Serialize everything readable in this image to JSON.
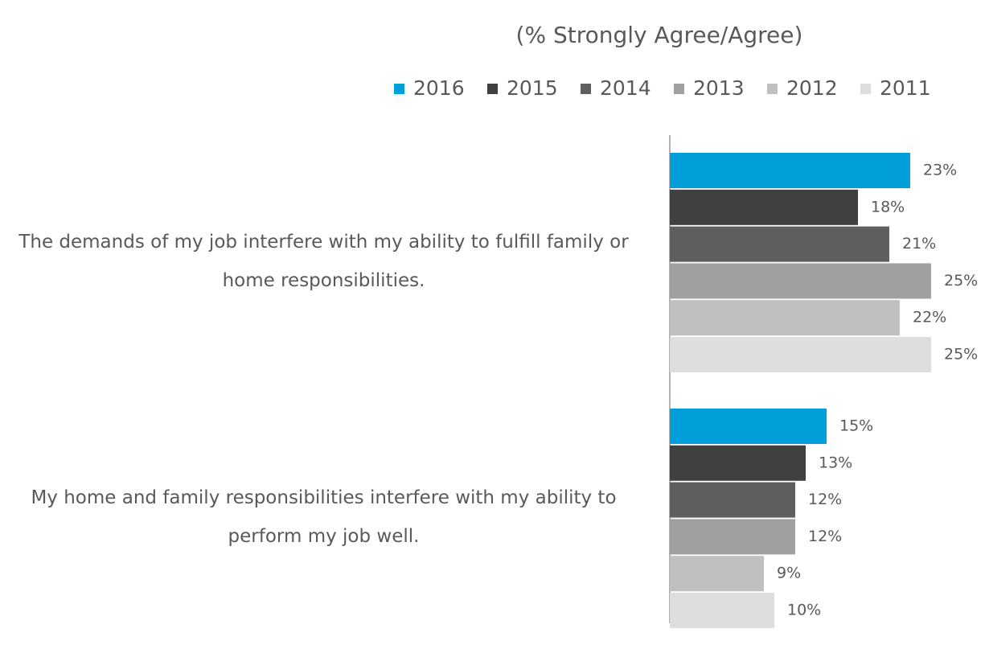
{
  "chart_data": {
    "type": "hbar",
    "title": "(% Strongly Agree/Agree)",
    "categories": [
      "The demands of my job interfere with my ability to fulfill family or home responsibilities.",
      "My home and family responsibilities interfere with my ability to perform my job well."
    ],
    "series": [
      {
        "name": "2016",
        "color": "#009fda",
        "values": [
          23,
          15
        ],
        "value_labels": [
          "23%",
          "15%"
        ]
      },
      {
        "name": "2015",
        "color": "#404040",
        "values": [
          18,
          13
        ],
        "value_labels": [
          "18%",
          "13%"
        ]
      },
      {
        "name": "2014",
        "color": "#5f5f5f",
        "values": [
          21,
          12
        ],
        "value_labels": [
          "21%",
          "12%"
        ]
      },
      {
        "name": "2013",
        "color": "#a0a0a0",
        "values": [
          25,
          12
        ],
        "value_labels": [
          "25%",
          "12%"
        ]
      },
      {
        "name": "2012",
        "color": "#c0c0c0",
        "values": [
          22,
          9
        ],
        "value_labels": [
          "22%",
          "9%"
        ]
      },
      {
        "name": "2011",
        "color": "#dedede",
        "values": [
          25,
          10
        ],
        "value_labels": [
          "25%",
          "10%"
        ]
      }
    ],
    "xlim": [
      0,
      25
    ],
    "legend": "top"
  }
}
